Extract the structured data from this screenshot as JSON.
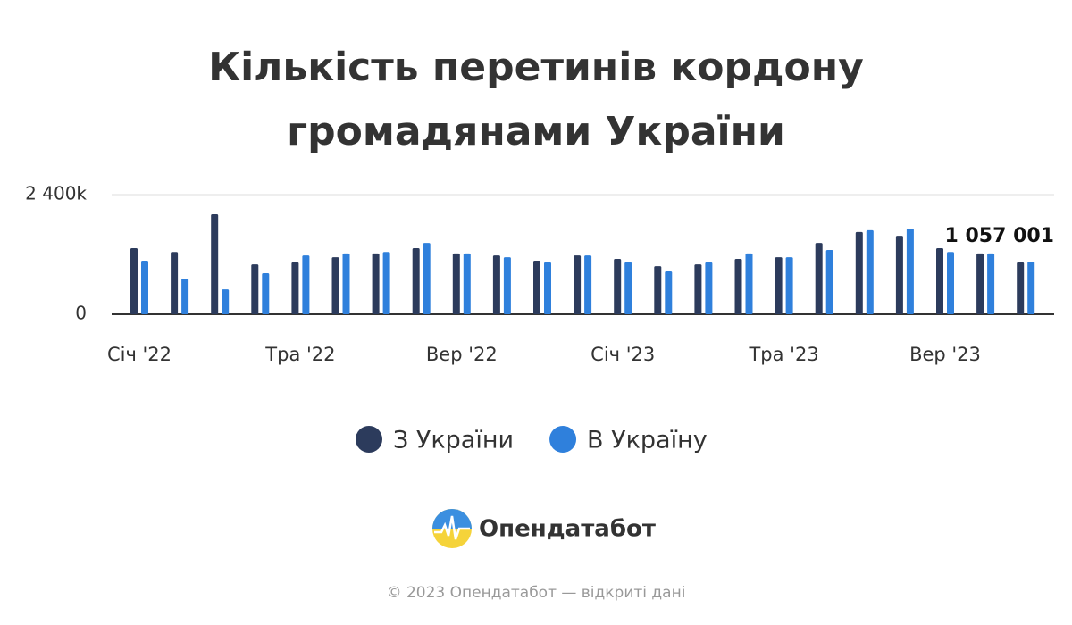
{
  "chart_data": {
    "type": "bar",
    "title_lines": [
      "Кількість перетинів кордону",
      "громадянами України"
    ],
    "categories": [
      "Січ '22",
      null,
      null,
      null,
      "Тра '22",
      null,
      null,
      null,
      "Вер '22",
      null,
      null,
      null,
      "Січ '23",
      null,
      null,
      null,
      "Тра '23",
      null,
      null,
      null,
      "Вер '23",
      null,
      null
    ],
    "series": [
      {
        "name": "З України",
        "color": "#2c3b5c",
        "values": [
          1325000,
          1250000,
          2005000,
          1000000,
          1040000,
          1145000,
          1220000,
          1325000,
          1220000,
          1180000,
          1075000,
          1180000,
          1110000,
          965000,
          1000000,
          1110000,
          1145000,
          1430000,
          1650000,
          1575000,
          1325000,
          1220000,
          1040000
        ]
      },
      {
        "name": "В Україну",
        "color": "#2f80dc",
        "values": [
          1075000,
          715000,
          500000,
          825000,
          1180000,
          1220000,
          1250000,
          1430000,
          1220000,
          1145000,
          1040000,
          1180000,
          1040000,
          860000,
          1040000,
          1220000,
          1145000,
          1290000,
          1685000,
          1720000,
          1250000,
          1220000,
          1057001
        ]
      }
    ],
    "annotation": {
      "text": "1 057 001",
      "value": 1057001
    },
    "ylim": [
      0,
      2400000
    ],
    "yticks": [
      0,
      {
        "value": 2400000,
        "label": "2 400k"
      }
    ],
    "grid": true,
    "legend": "bottom"
  },
  "brand": "Опендатабот",
  "footer": "© 2023 Опендатабот — відкриті дані"
}
